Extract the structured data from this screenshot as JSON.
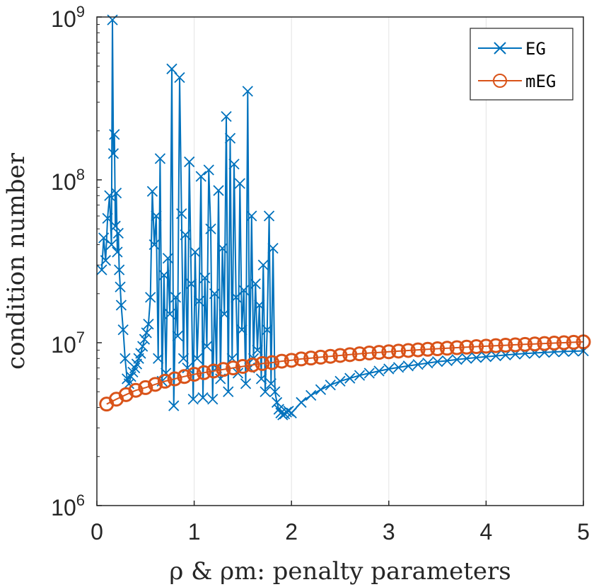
{
  "chart_data": {
    "type": "line",
    "yscale": "log",
    "xlabel": "ρ & ρm: penalty parameters",
    "ylabel": "condition number",
    "xlim": [
      0,
      5
    ],
    "ylim": [
      1000000,
      1000000000
    ],
    "xticks": [
      "0",
      "1",
      "2",
      "3",
      "4",
      "5"
    ],
    "yticks": [
      {
        "base": "10",
        "exp": "6",
        "value": 1000000
      },
      {
        "base": "10",
        "exp": "7",
        "value": 10000000
      },
      {
        "base": "10",
        "exp": "8",
        "value": 100000000
      },
      {
        "base": "10",
        "exp": "9",
        "value": 1000000000
      }
    ],
    "xgrid": true,
    "legend_position": "top-right",
    "series": [
      {
        "name": "EG",
        "color": "#0072BD",
        "marker": "x",
        "x": [
          0.05,
          0.07,
          0.09,
          0.11,
          0.13,
          0.15,
          0.16,
          0.17,
          0.18,
          0.19,
          0.2,
          0.21,
          0.22,
          0.23,
          0.24,
          0.25,
          0.27,
          0.29,
          0.31,
          0.33,
          0.35,
          0.37,
          0.39,
          0.41,
          0.43,
          0.45,
          0.47,
          0.49,
          0.51,
          0.53,
          0.55,
          0.57,
          0.59,
          0.61,
          0.63,
          0.65,
          0.67,
          0.69,
          0.71,
          0.73,
          0.75,
          0.77,
          0.79,
          0.81,
          0.83,
          0.85,
          0.87,
          0.89,
          0.91,
          0.93,
          0.95,
          0.97,
          0.99,
          1.01,
          1.03,
          1.05,
          1.07,
          1.09,
          1.11,
          1.13,
          1.15,
          1.17,
          1.19,
          1.21,
          1.23,
          1.25,
          1.27,
          1.29,
          1.31,
          1.33,
          1.35,
          1.37,
          1.39,
          1.41,
          1.43,
          1.45,
          1.47,
          1.49,
          1.51,
          1.53,
          1.55,
          1.57,
          1.59,
          1.61,
          1.63,
          1.65,
          1.67,
          1.69,
          1.71,
          1.73,
          1.75,
          1.77,
          1.79,
          1.81,
          1.83,
          1.85,
          1.87,
          1.89,
          1.91,
          1.93,
          1.95,
          1.97,
          2.0,
          2.1,
          2.2,
          2.3,
          2.4,
          2.5,
          2.6,
          2.7,
          2.8,
          2.9,
          3.0,
          3.1,
          3.2,
          3.3,
          3.4,
          3.5,
          3.6,
          3.7,
          3.8,
          3.9,
          4.0,
          4.1,
          4.2,
          4.3,
          4.4,
          4.5,
          4.6,
          4.7,
          4.8,
          4.9,
          5.0
        ],
        "y": [
          28000000,
          44000000,
          32000000,
          58000000,
          80000000,
          40000000,
          960000000,
          145000000,
          190000000,
          52000000,
          83000000,
          36000000,
          47000000,
          28000000,
          22000000,
          17000000,
          12000000,
          8000000,
          6000000,
          5600000,
          6200000,
          6600000,
          7000000,
          7400000,
          8000000,
          8600000,
          9500000,
          10500000,
          11500000,
          13000000,
          19000000,
          85000000,
          40000000,
          60000000,
          8000000,
          135000000,
          5800000,
          26000000,
          6500000,
          33000000,
          15000000,
          480000000,
          4100000,
          19000000,
          11000000,
          425000000,
          62000000,
          8000000,
          46000000,
          7000000,
          129000000,
          23000000,
          4500000,
          36000000,
          8000000,
          18000000,
          105000000,
          4600000,
          25000000,
          9500000,
          115000000,
          50000000,
          4500000,
          20000000,
          7000000,
          86000000,
          6000000,
          38000000,
          15000000,
          245000000,
          5000000,
          180000000,
          8000000,
          125000000,
          19000000,
          6500000,
          95000000,
          12000000,
          21000000,
          5600000,
          350000000,
          7000000,
          60000000,
          8000000,
          23000000,
          9000000,
          17000000,
          6000000,
          30000000,
          5000000,
          12000000,
          60000000,
          5600000,
          38000000,
          5000000,
          4300000,
          3900000,
          3700000,
          3600000,
          3650000,
          3750000,
          3800000,
          3700000,
          4300000,
          4750000,
          5150000,
          5500000,
          5800000,
          6050000,
          6300000,
          6500000,
          6700000,
          6900000,
          7050000,
          7200000,
          7350000,
          7500000,
          7650000,
          7750000,
          7880000,
          8000000,
          8100000,
          8200000,
          8300000,
          8400000,
          8500000,
          8580000,
          8650000,
          8720000,
          8780000,
          8830000,
          8870000,
          8900000
        ]
      },
      {
        "name": "mEG",
        "color": "#D95319",
        "marker": "o",
        "x": [
          0.1,
          0.2,
          0.3,
          0.4,
          0.5,
          0.6,
          0.7,
          0.8,
          0.9,
          1.0,
          1.1,
          1.2,
          1.3,
          1.4,
          1.5,
          1.6,
          1.7,
          1.8,
          1.9,
          2.0,
          2.1,
          2.2,
          2.3,
          2.4,
          2.5,
          2.6,
          2.7,
          2.8,
          2.9,
          3.0,
          3.1,
          3.2,
          3.3,
          3.4,
          3.5,
          3.6,
          3.7,
          3.8,
          3.9,
          4.0,
          4.1,
          4.2,
          4.3,
          4.4,
          4.5,
          4.6,
          4.7,
          4.8,
          4.9,
          5.0
        ],
        "y": [
          4200000,
          4500000,
          4800000,
          5100000,
          5300000,
          5550000,
          5800000,
          6000000,
          6200000,
          6400000,
          6550000,
          6700000,
          6850000,
          7000000,
          7150000,
          7300000,
          7450000,
          7550000,
          7700000,
          7800000,
          7950000,
          8050000,
          8150000,
          8250000,
          8350000,
          8450000,
          8550000,
          8650000,
          8720000,
          8800000,
          8880000,
          8960000,
          9040000,
          9110000,
          9180000,
          9250000,
          9320000,
          9390000,
          9460000,
          9520000,
          9590000,
          9650000,
          9710000,
          9770000,
          9830000,
          9890000,
          9950000,
          10000000,
          10060000,
          10120000
        ]
      }
    ]
  }
}
